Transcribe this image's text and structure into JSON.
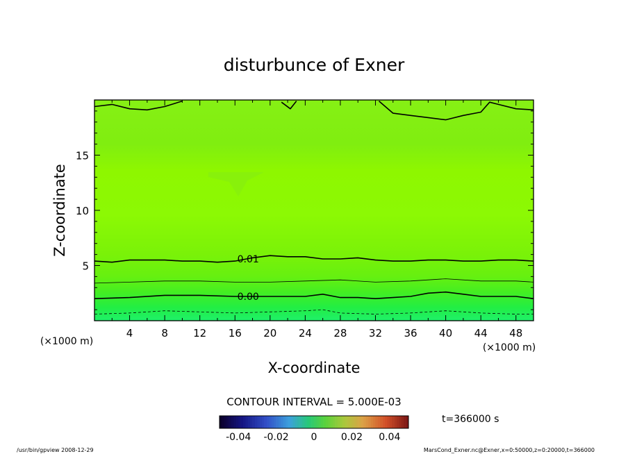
{
  "chart_data": {
    "type": "heatmap",
    "title": "disturbunce of Exner",
    "xlabel": "X-coordinate",
    "ylabel": "Z-coordinate",
    "x_unit": "(×1000 m)",
    "xlim": [
      0,
      50
    ],
    "ylim": [
      0,
      20
    ],
    "x_ticks": [
      4,
      8,
      12,
      16,
      20,
      24,
      28,
      32,
      36,
      40,
      44,
      48
    ],
    "y_ticks": [
      5,
      10,
      15
    ],
    "contour_interval_text": "CONTOUR INTERVAL = 5.000E-03",
    "time_text": "t=366000 s",
    "colorbar": {
      "labels": [
        "-0.04",
        "-0.02",
        "0",
        "0.02",
        "0.04"
      ],
      "values": [
        -0.04,
        -0.02,
        0,
        0.02,
        0.04
      ],
      "range": [
        -0.05,
        0.05
      ]
    },
    "contour_labels": [
      {
        "text": "0.01",
        "x": 17.5,
        "z": 5.6
      },
      {
        "text": "0.00",
        "x": 17.5,
        "z": 2.2
      }
    ],
    "contours": [
      {
        "level": 0.01,
        "style": "thick",
        "x": [
          0,
          2,
          4,
          6,
          8,
          10,
          12,
          14,
          16,
          18,
          20,
          22,
          24,
          26,
          28,
          30,
          32,
          34,
          36,
          38,
          40,
          42,
          44,
          46,
          48,
          50
        ],
        "z": [
          5.4,
          5.3,
          5.5,
          5.5,
          5.5,
          5.4,
          5.4,
          5.3,
          5.4,
          5.7,
          5.9,
          5.8,
          5.8,
          5.6,
          5.6,
          5.7,
          5.5,
          5.4,
          5.4,
          5.5,
          5.5,
          5.4,
          5.4,
          5.5,
          5.5,
          5.4
        ]
      },
      {
        "level": 0.005,
        "style": "thin",
        "x": [
          0,
          4,
          8,
          12,
          16,
          20,
          24,
          28,
          32,
          36,
          40,
          44,
          48,
          50
        ],
        "z": [
          3.4,
          3.5,
          3.6,
          3.6,
          3.5,
          3.5,
          3.6,
          3.7,
          3.5,
          3.6,
          3.8,
          3.6,
          3.6,
          3.5
        ]
      },
      {
        "level": 0.0,
        "style": "thick",
        "x": [
          0,
          4,
          8,
          12,
          16,
          20,
          24,
          26,
          28,
          30,
          32,
          34,
          36,
          38,
          40,
          42,
          44,
          46,
          48,
          50
        ],
        "z": [
          2.0,
          2.1,
          2.3,
          2.3,
          2.2,
          2.2,
          2.2,
          2.4,
          2.1,
          2.1,
          2.0,
          2.1,
          2.2,
          2.5,
          2.6,
          2.4,
          2.2,
          2.2,
          2.2,
          2.0
        ]
      },
      {
        "level": -0.005,
        "style": "dashed",
        "x": [
          0,
          4,
          8,
          12,
          16,
          20,
          24,
          26,
          28,
          32,
          36,
          40,
          44,
          48,
          50
        ],
        "z": [
          0.6,
          0.7,
          0.9,
          0.8,
          0.7,
          0.8,
          0.9,
          1.0,
          0.7,
          0.6,
          0.7,
          0.9,
          0.7,
          0.6,
          0.6
        ]
      },
      {
        "level": 0.005,
        "style": "thick",
        "x": [
          0,
          2,
          4,
          6,
          8,
          10
        ],
        "z": [
          19.4,
          19.6,
          19.2,
          19.1,
          19.4,
          19.9
        ]
      },
      {
        "level": 0.005,
        "style": "thick",
        "x": [
          21.3,
          22.3,
          23.0
        ],
        "z": [
          19.8,
          19.2,
          19.9
        ]
      },
      {
        "level": 0.005,
        "style": "thick",
        "x": [
          32.4,
          34,
          36,
          38,
          40,
          42,
          44,
          45,
          46,
          48,
          50
        ],
        "z": [
          19.9,
          18.8,
          18.6,
          18.4,
          18.2,
          18.6,
          18.9,
          19.8,
          19.6,
          19.2,
          19.1
        ]
      }
    ],
    "footer_left": "/usr/bin/gpview   2008-12-29",
    "footer_right": "MarsCond_Exner.nc@Exner,x=0:50000,z=0:20000,t=366000"
  }
}
